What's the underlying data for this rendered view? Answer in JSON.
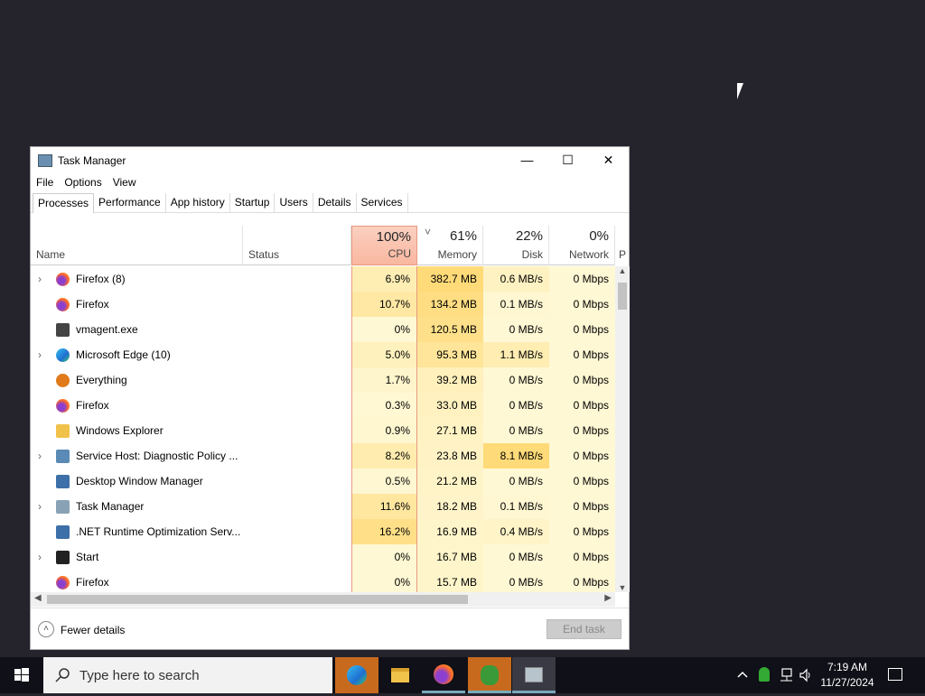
{
  "window": {
    "title": "Task Manager",
    "minimize": "—",
    "maximize": "☐",
    "close": "✕"
  },
  "menu": [
    "File",
    "Options",
    "View"
  ],
  "tabs": [
    "Processes",
    "Performance",
    "App history",
    "Startup",
    "Users",
    "Details",
    "Services"
  ],
  "header": {
    "name": "Name",
    "status": "Status",
    "cpu_pct": "100%",
    "cpu": "CPU",
    "mem_pct": "61%",
    "mem": "Memory",
    "disk_pct": "22%",
    "disk": "Disk",
    "net_pct": "0%",
    "net": "Network",
    "power": "P",
    "sort_indicator": "˅"
  },
  "rows": [
    {
      "name": "Firefox (8)",
      "exp": true,
      "icon": "firefox",
      "cpu": "6.9%",
      "mem": "382.7 MB",
      "disk": "0.6 MB/s",
      "net": "0 Mbps"
    },
    {
      "name": "Firefox",
      "exp": false,
      "icon": "firefox",
      "cpu": "10.7%",
      "mem": "134.2 MB",
      "disk": "0.1 MB/s",
      "net": "0 Mbps"
    },
    {
      "name": "vmagent.exe",
      "exp": false,
      "icon": "floppy",
      "cpu": "0%",
      "mem": "120.5 MB",
      "disk": "0 MB/s",
      "net": "0 Mbps"
    },
    {
      "name": "Microsoft Edge (10)",
      "exp": true,
      "icon": "edge",
      "cpu": "5.0%",
      "mem": "95.3 MB",
      "disk": "1.1 MB/s",
      "net": "0 Mbps"
    },
    {
      "name": "Everything",
      "exp": false,
      "icon": "search",
      "cpu": "1.7%",
      "mem": "39.2 MB",
      "disk": "0 MB/s",
      "net": "0 Mbps"
    },
    {
      "name": "Firefox",
      "exp": false,
      "icon": "firefox",
      "cpu": "0.3%",
      "mem": "33.0 MB",
      "disk": "0 MB/s",
      "net": "0 Mbps"
    },
    {
      "name": "Windows Explorer",
      "exp": false,
      "icon": "folder",
      "cpu": "0.9%",
      "mem": "27.1 MB",
      "disk": "0 MB/s",
      "net": "0 Mbps"
    },
    {
      "name": "Service Host: Diagnostic Policy ...",
      "exp": true,
      "icon": "gear",
      "cpu": "8.2%",
      "mem": "23.8 MB",
      "disk": "8.1 MB/s",
      "net": "0 Mbps"
    },
    {
      "name": "Desktop Window Manager",
      "exp": false,
      "icon": "window",
      "cpu": "0.5%",
      "mem": "21.2 MB",
      "disk": "0 MB/s",
      "net": "0 Mbps"
    },
    {
      "name": "Task Manager",
      "exp": true,
      "icon": "taskmgr",
      "cpu": "11.6%",
      "mem": "18.2 MB",
      "disk": "0.1 MB/s",
      "net": "0 Mbps"
    },
    {
      "name": ".NET Runtime Optimization Serv...",
      "exp": false,
      "icon": "window",
      "cpu": "16.2%",
      "mem": "16.9 MB",
      "disk": "0.4 MB/s",
      "net": "0 Mbps"
    },
    {
      "name": "Start",
      "exp": true,
      "icon": "start",
      "cpu": "0%",
      "mem": "16.7 MB",
      "disk": "0 MB/s",
      "net": "0 Mbps"
    },
    {
      "name": "Firefox",
      "exp": false,
      "icon": "firefox",
      "cpu": "0%",
      "mem": "15.7 MB",
      "disk": "0 MB/s",
      "net": "0 Mbps"
    }
  ],
  "footer": {
    "fewer": "Fewer details",
    "end_task": "End task"
  },
  "taskbar": {
    "search_placeholder": "Type here to search",
    "time": "7:19 AM",
    "date": "11/27/2024"
  }
}
